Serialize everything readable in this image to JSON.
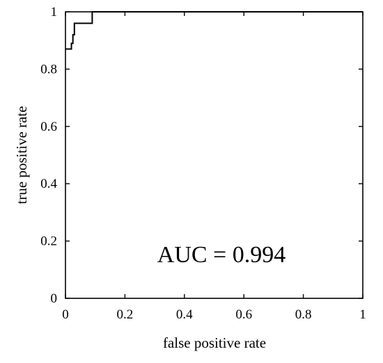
{
  "chart_data": {
    "type": "line",
    "title": "",
    "xlabel": "false positive rate",
    "ylabel": "true positive rate",
    "xlim": [
      0,
      1
    ],
    "ylim": [
      0,
      1
    ],
    "x_ticks": [
      0,
      0.2,
      0.4,
      0.6,
      0.8,
      1
    ],
    "x_tick_labels": [
      "0",
      "0.2",
      "0.4",
      "0.6",
      "0.8",
      "1"
    ],
    "y_ticks": [
      0,
      0.2,
      0.4,
      0.6,
      0.8,
      1
    ],
    "y_tick_labels": [
      "0",
      "0.2",
      "0.4",
      "0.6",
      "0.8",
      "1"
    ],
    "grid": false,
    "legend": "none",
    "annotation": "AUC = 0.994",
    "series": [
      {
        "color": "#000000",
        "step": true,
        "x": [
          0,
          0.02,
          0.02,
          0.025,
          0.025,
          0.03,
          0.03,
          0.09,
          0.09,
          1
        ],
        "y": [
          0.87,
          0.87,
          0.89,
          0.89,
          0.92,
          0.92,
          0.96,
          0.96,
          1,
          1
        ]
      }
    ]
  }
}
